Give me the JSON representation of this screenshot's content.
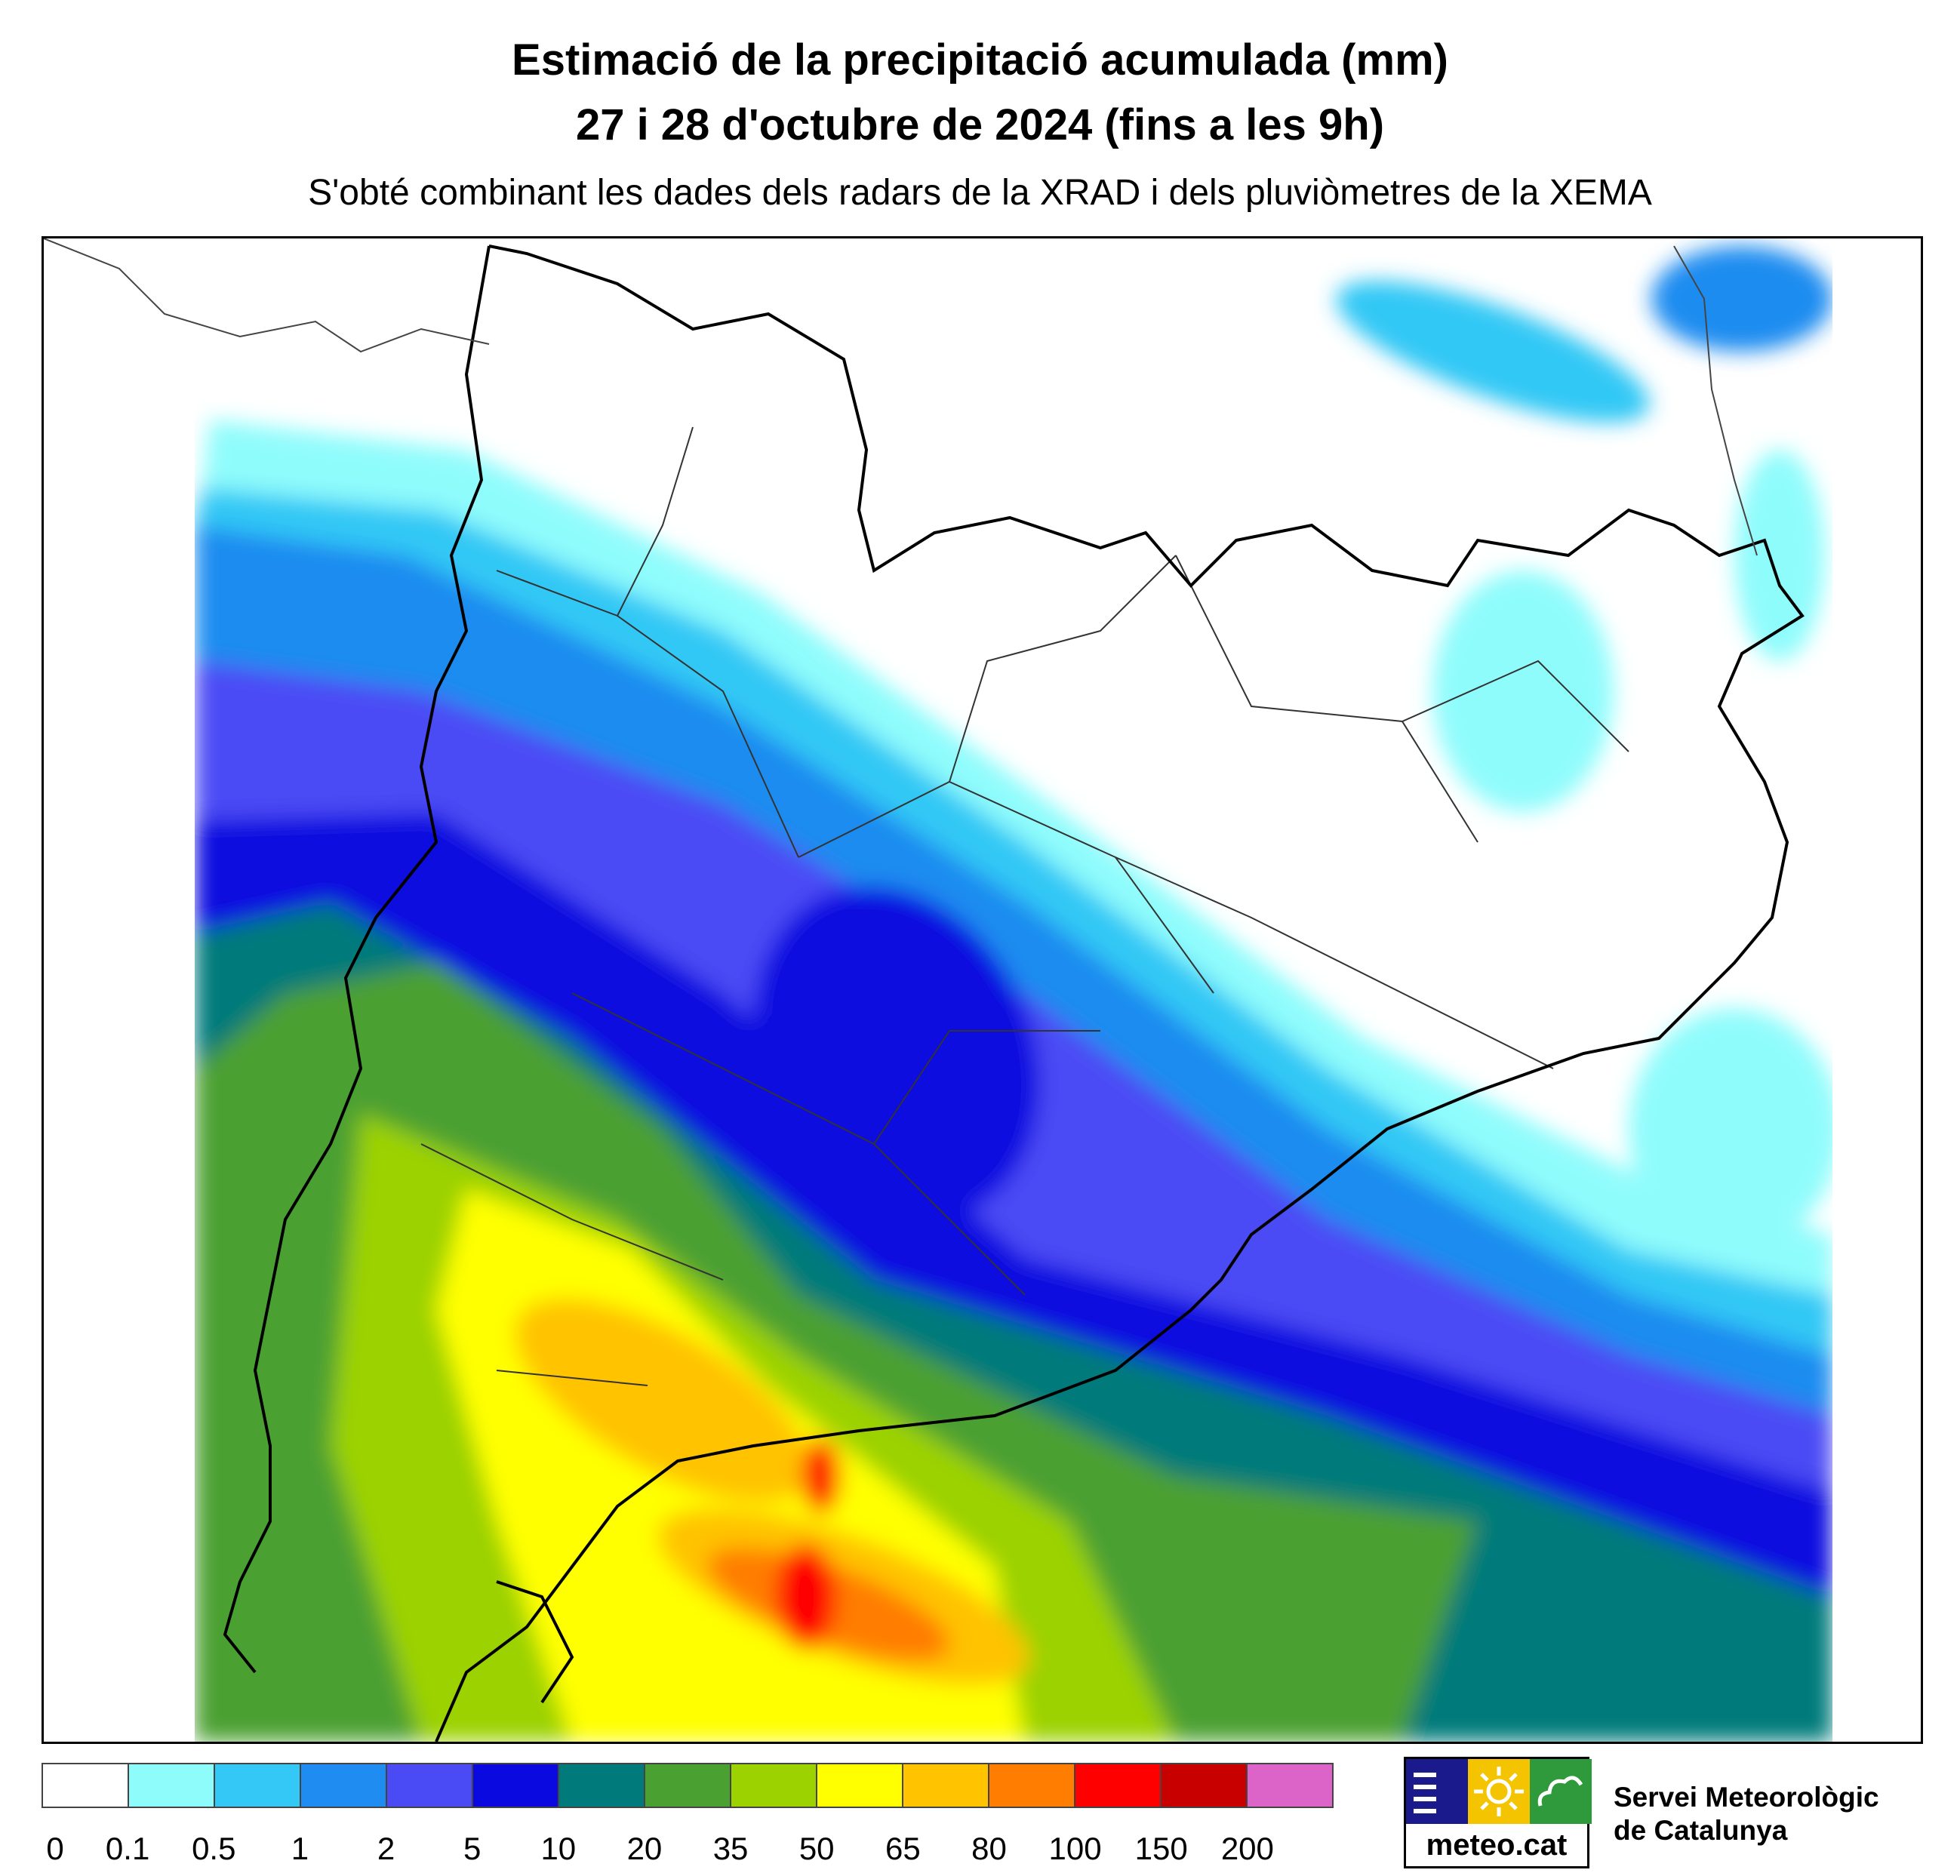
{
  "title": {
    "line1": "Estimació de la precipitació acumulada (mm)",
    "line2": "27 i 28 d'octubre de 2024 (fins a les 9h)",
    "subtitle": "S'obté combinant les dades dels radars de la XRAD i dels pluviòmetres de la XEMA"
  },
  "legend": {
    "colors": [
      "#ffffff",
      "#8ffcfc",
      "#33c8f5",
      "#1e8cf0",
      "#4b4bf5",
      "#0a0ae0",
      "#007a7a",
      "#4ba032",
      "#9bd200",
      "#ffff00",
      "#ffc300",
      "#ff7d00",
      "#ff0000",
      "#c80000",
      "#dc64c8"
    ],
    "ticks": [
      "0",
      "0.1",
      "0.5",
      "1",
      "2",
      "5",
      "10",
      "20",
      "35",
      "50",
      "65",
      "80",
      "100",
      "150",
      "200"
    ]
  },
  "logo": {
    "brand": "meteo.cat",
    "org_line1": "Servei Meteorològic",
    "org_line2": "de Catalunya",
    "colors": {
      "blue": "#1a1a8c",
      "yellow": "#f5c400",
      "green": "#2e9a3c"
    }
  }
}
